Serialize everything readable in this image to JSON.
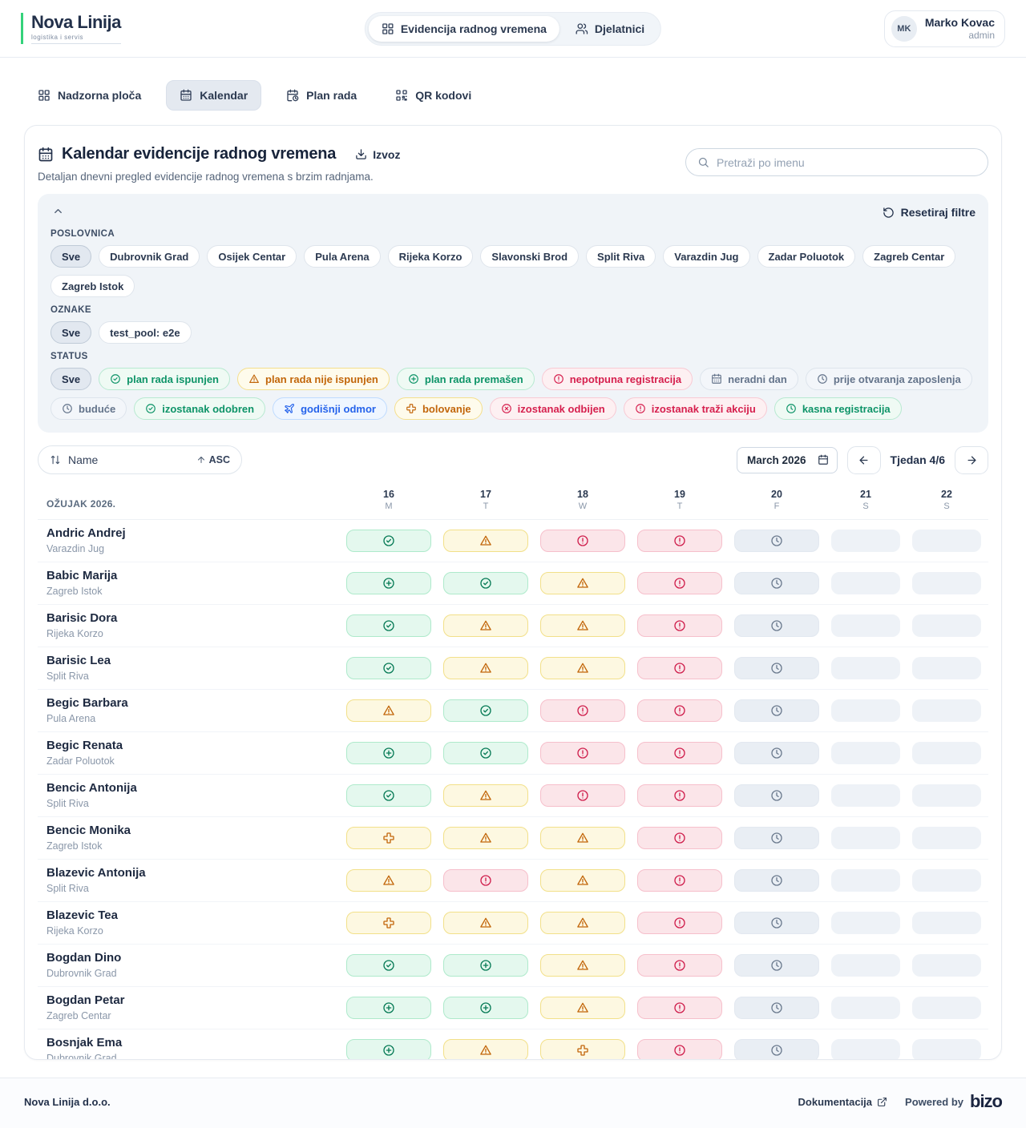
{
  "colors": {
    "brand_green": "#34d27b",
    "status_green": "#067a55",
    "status_yellow": "#c2660a",
    "status_red": "#cf1e4c",
    "status_blue": "#2563eb",
    "status_gray": "#6b7a8e",
    "text_navy": "#22304a"
  },
  "brand": {
    "name": "Nova Linija",
    "tagline": "logistika i servis"
  },
  "header": {
    "nav": [
      {
        "label": "Evidencija radnog vremena",
        "icon": "grid",
        "active": true
      },
      {
        "label": "Djelatnici",
        "icon": "people",
        "active": false
      }
    ],
    "user": {
      "initials": "MK",
      "name": "Marko Kovac",
      "role": "admin"
    }
  },
  "tabs": [
    {
      "label": "Nadzorna ploča",
      "icon": "grid",
      "active": false
    },
    {
      "label": "Kalendar",
      "icon": "calendar",
      "active": true
    },
    {
      "label": "Plan rada",
      "icon": "calendar-clock",
      "active": false
    },
    {
      "label": "QR kodovi",
      "icon": "qr",
      "active": false
    }
  ],
  "page": {
    "title": "Kalendar evidencije radnog vremena",
    "export_label": "Izvoz",
    "subtitle": "Detaljan dnevni pregled evidencije radnog vremena s brzim radnjama.",
    "search_placeholder": "Pretraži po imenu"
  },
  "filters": {
    "reset_label": "Resetiraj filtre",
    "poslovnica": {
      "label": "POSLOVNICA",
      "chips": [
        {
          "label": "Sve",
          "selected": true
        },
        {
          "label": "Dubrovnik Grad"
        },
        {
          "label": "Osijek Centar"
        },
        {
          "label": "Pula Arena"
        },
        {
          "label": "Rijeka Korzo"
        },
        {
          "label": "Slavonski Brod"
        },
        {
          "label": "Split Riva"
        },
        {
          "label": "Varazdin Jug"
        },
        {
          "label": "Zadar Poluotok"
        },
        {
          "label": "Zagreb Centar"
        },
        {
          "label": "Zagreb Istok"
        }
      ]
    },
    "oznake": {
      "label": "OZNAKE",
      "chips": [
        {
          "label": "Sve",
          "selected": true
        },
        {
          "label": "test_pool: e2e"
        }
      ]
    },
    "status": {
      "label": "STATUS",
      "chips": [
        {
          "label": "Sve",
          "selected": true
        },
        {
          "label": "plan rada ispunjen",
          "icon": "check-circle",
          "color": "green"
        },
        {
          "label": "plan rada nije ispunjen",
          "icon": "warning-triangle",
          "color": "yellow"
        },
        {
          "label": "plan rada premašen",
          "icon": "plus-circle",
          "color": "green"
        },
        {
          "label": "nepotpuna registracija",
          "icon": "exclamation-circle",
          "color": "red"
        },
        {
          "label": "neradni dan",
          "icon": "calendar",
          "color": "gray"
        },
        {
          "label": "prije otvaranja zaposlenja",
          "icon": "clock",
          "color": "gray"
        },
        {
          "label": "buduće",
          "icon": "clock",
          "color": "gray"
        },
        {
          "label": "izostanak odobren",
          "icon": "check-circle",
          "color": "green"
        },
        {
          "label": "godišnji odmor",
          "icon": "plane",
          "color": "blue"
        },
        {
          "label": "bolovanje",
          "icon": "medical-cross",
          "color": "yellow"
        },
        {
          "label": "izostanak odbijen",
          "icon": "x-circle",
          "color": "red"
        },
        {
          "label": "izostanak traži akciju",
          "icon": "exclamation-circle",
          "color": "red"
        },
        {
          "label": "kasna registracija",
          "icon": "clock",
          "color": "green"
        }
      ]
    }
  },
  "toolbar": {
    "sort_field": "Name",
    "sort_dir": "ASC",
    "month_value": "March  2026",
    "week_label": "Tjedan 4/6"
  },
  "calendar": {
    "month_label": "OŽUJAK 2026.",
    "days": [
      {
        "num": "16",
        "dow": "M"
      },
      {
        "num": "17",
        "dow": "T"
      },
      {
        "num": "18",
        "dow": "W"
      },
      {
        "num": "19",
        "dow": "T"
      },
      {
        "num": "20",
        "dow": "F"
      },
      {
        "num": "21",
        "dow": "S"
      },
      {
        "num": "22",
        "dow": "S"
      }
    ],
    "cell_legend": {
      "check": "plan rada ispunjen",
      "plus": "plan rada premašen",
      "warn": "plan rada nije ispunjen",
      "cross": "bolovanje",
      "excl": "nepotpuna registracija",
      "clock": "buduće",
      "empty": "neradni dan"
    },
    "rows": [
      {
        "name": "Andric Andrej",
        "branch": "Varazdin Jug",
        "cells": [
          "check",
          "warn",
          "excl",
          "excl",
          "clock",
          "empty",
          "empty"
        ]
      },
      {
        "name": "Babic Marija",
        "branch": "Zagreb Istok",
        "cells": [
          "plus",
          "check",
          "warn",
          "excl",
          "clock",
          "empty",
          "empty"
        ]
      },
      {
        "name": "Barisic Dora",
        "branch": "Rijeka Korzo",
        "cells": [
          "check",
          "warn",
          "warn",
          "excl",
          "clock",
          "empty",
          "empty"
        ]
      },
      {
        "name": "Barisic Lea",
        "branch": "Split Riva",
        "cells": [
          "check",
          "warn",
          "warn",
          "excl",
          "clock",
          "empty",
          "empty"
        ]
      },
      {
        "name": "Begic Barbara",
        "branch": "Pula Arena",
        "cells": [
          "warn",
          "check",
          "excl",
          "excl",
          "clock",
          "empty",
          "empty"
        ]
      },
      {
        "name": "Begic Renata",
        "branch": "Zadar Poluotok",
        "cells": [
          "plus",
          "check",
          "excl",
          "excl",
          "clock",
          "empty",
          "empty"
        ]
      },
      {
        "name": "Bencic Antonija",
        "branch": "Split Riva",
        "cells": [
          "check",
          "warn",
          "excl",
          "excl",
          "clock",
          "empty",
          "empty"
        ]
      },
      {
        "name": "Bencic Monika",
        "branch": "Zagreb Istok",
        "cells": [
          "cross",
          "warn",
          "warn",
          "excl",
          "clock",
          "empty",
          "empty"
        ]
      },
      {
        "name": "Blazevic Antonija",
        "branch": "Split Riva",
        "cells": [
          "warn",
          "excl",
          "warn",
          "excl",
          "clock",
          "empty",
          "empty"
        ]
      },
      {
        "name": "Blazevic Tea",
        "branch": "Rijeka Korzo",
        "cells": [
          "cross",
          "warn",
          "warn",
          "excl",
          "clock",
          "empty",
          "empty"
        ]
      },
      {
        "name": "Bogdan Dino",
        "branch": "Dubrovnik Grad",
        "cells": [
          "check",
          "plus",
          "warn",
          "excl",
          "clock",
          "empty",
          "empty"
        ]
      },
      {
        "name": "Bogdan Petar",
        "branch": "Zagreb Centar",
        "cells": [
          "plus",
          "plus",
          "warn",
          "excl",
          "clock",
          "empty",
          "empty"
        ]
      },
      {
        "name": "Bosnjak Ema",
        "branch": "Dubrovnik Grad",
        "cells": [
          "plus",
          "warn",
          "cross",
          "excl",
          "clock",
          "empty",
          "empty"
        ]
      }
    ]
  },
  "footer": {
    "company": "Nova Linija d.o.o.",
    "docs_label": "Dokumentacija",
    "powered_by": "Powered by",
    "logo": "bizo"
  }
}
